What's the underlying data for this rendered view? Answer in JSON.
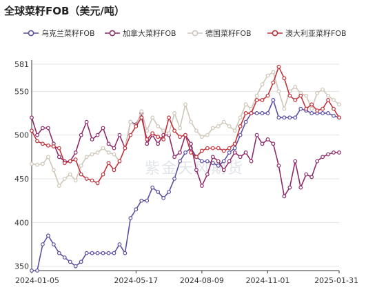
{
  "chart_data": {
    "type": "line",
    "title": "全球菜籽FOB（美元/吨）",
    "watermark": "紫金天风期货",
    "x_ticks": [
      "2024-01-05",
      "2024-05-17",
      "2024-08-09",
      "2024-11-01",
      "2025-01-31"
    ],
    "y_ticks": [
      350,
      400,
      450,
      500,
      550,
      581
    ],
    "ylim": [
      345,
      581
    ],
    "xlim": [
      "2024-01-05",
      "2025-01-31"
    ],
    "grid": "horizontal",
    "legend_position": "top",
    "x": [
      "2024-01-05",
      "2024-01-12",
      "2024-01-19",
      "2024-01-26",
      "2024-02-02",
      "2024-02-09",
      "2024-02-16",
      "2024-02-23",
      "2024-03-01",
      "2024-03-08",
      "2024-03-15",
      "2024-03-22",
      "2024-03-29",
      "2024-04-05",
      "2024-04-12",
      "2024-04-19",
      "2024-04-26",
      "2024-05-03",
      "2024-05-10",
      "2024-05-17",
      "2024-05-24",
      "2024-05-31",
      "2024-06-07",
      "2024-06-14",
      "2024-06-21",
      "2024-06-28",
      "2024-07-05",
      "2024-07-12",
      "2024-07-19",
      "2024-07-26",
      "2024-08-02",
      "2024-08-09",
      "2024-08-16",
      "2024-08-23",
      "2024-08-30",
      "2024-09-06",
      "2024-09-13",
      "2024-09-20",
      "2024-09-27",
      "2024-10-04",
      "2024-10-11",
      "2024-10-18",
      "2024-10-25",
      "2024-11-01",
      "2024-11-08",
      "2024-11-15",
      "2024-11-22",
      "2024-11-29",
      "2024-12-06",
      "2024-12-13",
      "2024-12-20",
      "2024-12-27",
      "2025-01-03",
      "2025-01-10",
      "2025-01-17",
      "2025-01-24",
      "2025-01-31"
    ],
    "series": [
      {
        "name": "乌克兰菜籽FOB",
        "color": "#5b4ea1",
        "values": [
          345,
          345,
          375,
          385,
          375,
          365,
          360,
          355,
          350,
          355,
          365,
          365,
          365,
          365,
          365,
          365,
          375,
          365,
          405,
          415,
          425,
          425,
          440,
          435,
          428,
          435,
          450,
          470,
          480,
          485,
          475,
          470,
          470,
          468,
          465,
          470,
          480,
          485,
          500,
          515,
          525,
          525,
          525,
          525,
          540,
          520,
          520,
          520,
          520,
          530,
          528,
          525,
          525,
          525,
          525,
          522,
          520
        ]
      },
      {
        "name": "加拿大菜籽FOB",
        "color": "#8c2a6a",
        "values": [
          520,
          500,
          508,
          508,
          490,
          475,
          470,
          470,
          480,
          500,
          515,
          495,
          500,
          508,
          490,
          485,
          500,
          485,
          515,
          512,
          525,
          490,
          500,
          490,
          500,
          500,
          475,
          480,
          500,
          490,
          460,
          442,
          455,
          475,
          470,
          460,
          470,
          480,
          475,
          480,
          470,
          500,
          490,
          495,
          490,
          465,
          430,
          440,
          470,
          440,
          455,
          452,
          470,
          475,
          478,
          480,
          480
        ]
      },
      {
        "name": "德国菜籽FOB",
        "color": "#cec6b8",
        "values": [
          467,
          466,
          467,
          475,
          460,
          442,
          450,
          455,
          448,
          465,
          475,
          478,
          480,
          485,
          480,
          478,
          470,
          485,
          515,
          510,
          527,
          505,
          520,
          510,
          505,
          502,
          525,
          508,
          535,
          515,
          505,
          498,
          500,
          508,
          510,
          515,
          510,
          505,
          520,
          535,
          530,
          545,
          558,
          568,
          572,
          550,
          530,
          550,
          555,
          548,
          545,
          530,
          548,
          552,
          545,
          540,
          535
        ]
      },
      {
        "name": "澳大利亚菜籽FOB",
        "color": "#c0313a",
        "values": [
          505,
          493,
          490,
          488,
          487,
          485,
          468,
          470,
          472,
          455,
          450,
          448,
          445,
          455,
          468,
          460,
          470,
          485,
          500,
          510,
          520,
          495,
          502,
          498,
          495,
          520,
          505,
          498,
          500,
          480,
          475,
          482,
          485,
          485,
          485,
          482,
          485,
          490,
          510,
          525,
          525,
          540,
          540,
          545,
          560,
          578,
          565,
          545,
          540,
          545,
          530,
          535,
          528,
          530,
          540,
          530,
          520
        ]
      }
    ]
  }
}
